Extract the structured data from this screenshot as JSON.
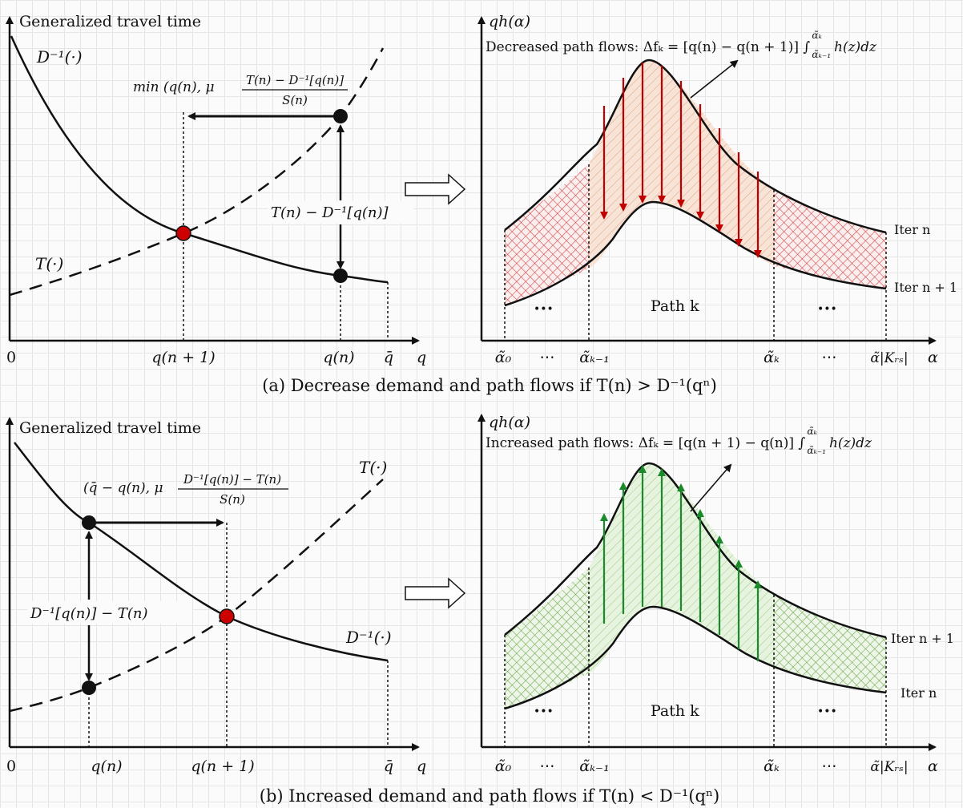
{
  "panel_a": {
    "caption": "(a) Decrease demand and path flows if T(n) > D⁻¹(qⁿ)",
    "left": {
      "y_axis_label": "Generalized travel time",
      "curve_demand_label": "D⁻¹(·)",
      "curve_cost_label": "T(·)",
      "step_label": "min (q(n), μ (T(n) − D⁻¹[q(n)]) / S(n))",
      "step_label_left": "min (q(n), μ",
      "step_label_num": "T(n) − D⁻¹[q(n)]",
      "step_label_den": "S(n)",
      "gap_label": "T(n) − D⁻¹[q(n)]",
      "origin_label": "0",
      "x_ticks": [
        "q(n + 1)",
        "q(n)",
        "q̄"
      ],
      "x_axis_label": "q"
    },
    "right": {
      "y_axis_label": "qh(α)",
      "flow_label": "Decreased path flows: Δfₖ = [q(n) − q(n + 1)] ∫ h(z)dz",
      "flow_label_main": "Decreased path flows: Δfₖ = [q(n) − q(n + 1)] ∫",
      "flow_label_tail": "h(z)dz",
      "integral_upper": "α̃ₖ",
      "integral_lower": "α̃ₖ₋₁",
      "upper_curve_label": "Iter n",
      "lower_curve_label": "Iter n + 1",
      "path_label": "Path k",
      "dots_left": "•••",
      "dots_right": "•••",
      "x_ticks": [
        "α̃₀",
        "⋯",
        "α̃ₖ₋₁",
        "α̃ₖ",
        "⋯",
        "α̃|Kᵣₛ|"
      ],
      "x_axis_label": "α"
    }
  },
  "panel_b": {
    "caption": "(b) Increased demand and path flows if T(n) < D⁻¹(qⁿ)",
    "left": {
      "y_axis_label": "Generalized travel time",
      "curve_demand_label": "D⁻¹(·)",
      "curve_cost_label": "T(·)",
      "step_label": "(q̄ − q(n), μ (D⁻¹[q(n)] − T(n)) / S(n))",
      "step_label_left": "(q̄ − q(n), μ",
      "step_label_num": "D⁻¹[q(n)] − T(n)",
      "step_label_den": "S(n)",
      "gap_label": "D⁻¹[q(n)] − T(n)",
      "origin_label": "0",
      "x_ticks": [
        "q(n)",
        "q(n + 1)",
        "q̄"
      ],
      "x_axis_label": "q"
    },
    "right": {
      "y_axis_label": "qh(α)",
      "flow_label": "Increased path flows: Δfₖ = [q(n + 1) − q(n)] ∫ h(z)dz",
      "flow_label_main": "Increased path flows: Δfₖ = [q(n + 1) − q(n)] ∫",
      "flow_label_tail": "h(z)dz",
      "integral_upper": "α̃ₖ",
      "integral_lower": "α̃ₖ₋₁",
      "upper_curve_label": "Iter n + 1",
      "lower_curve_label": "Iter n",
      "path_label": "Path k",
      "dots_left": "•••",
      "dots_right": "•••",
      "x_ticks": [
        "α̃₀",
        "⋯",
        "α̃ₖ₋₁",
        "α̃ₖ",
        "⋯",
        "α̃|Kᵣₛ|"
      ],
      "x_axis_label": "α"
    }
  },
  "colors": {
    "decrease_arrow": "#c00000",
    "decrease_fill": "#f6d9c6",
    "decrease_hatch": "#d86060",
    "increase_arrow": "#1a8a2a",
    "increase_fill": "#dcefd4",
    "increase_hatch": "#6faa4a",
    "equilibrium_point": "#cc0000"
  }
}
